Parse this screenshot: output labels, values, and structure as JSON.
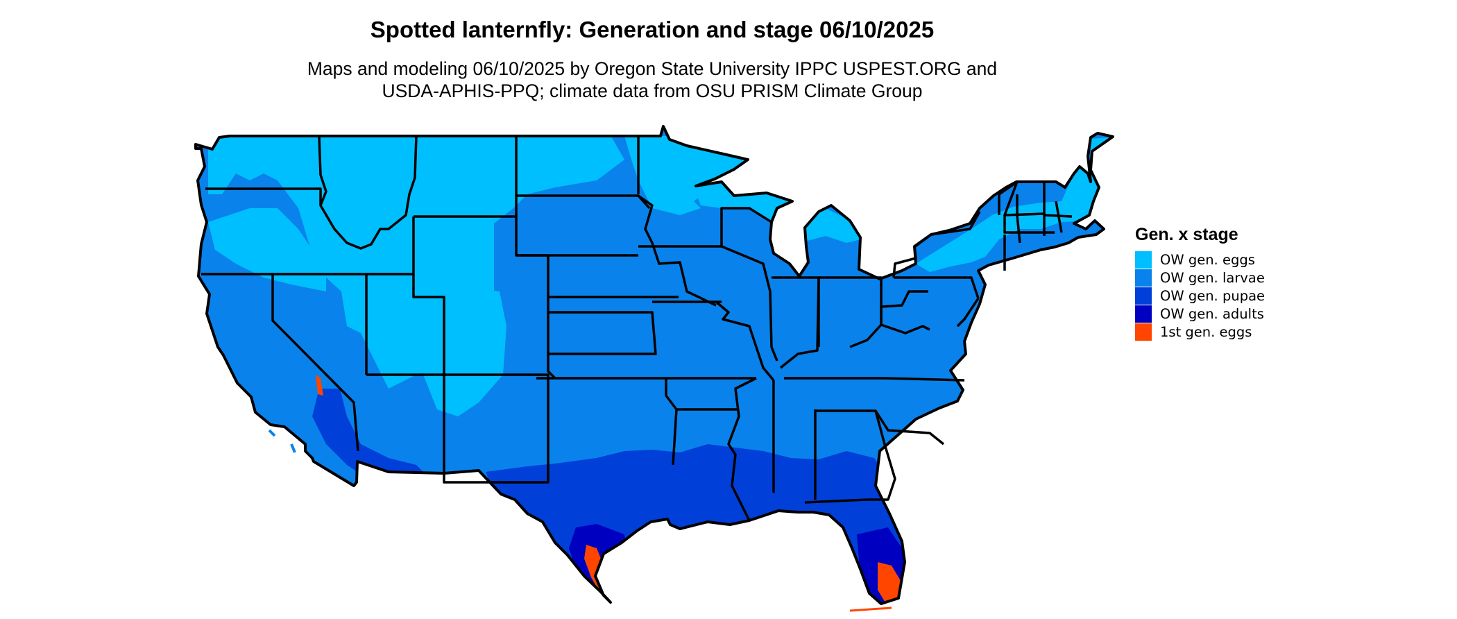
{
  "title": "Spotted lanternfly: Generation and stage 06/10/2025",
  "subtitle": {
    "line1": "Maps and modeling 06/10/2025 by Oregon State University IPPC USPEST.ORG and",
    "line2": "USDA-APHIS-PPQ; climate data from OSU PRISM Climate Group"
  },
  "legend": {
    "title": "Gen. x stage",
    "items": [
      {
        "label": "OW gen. eggs",
        "color": "#00bfff"
      },
      {
        "label": "OW gen. larvae",
        "color": "#0a82eb"
      },
      {
        "label": "OW gen. pupae",
        "color": "#0040d8"
      },
      {
        "label": "OW gen. adults",
        "color": "#0000c0"
      },
      {
        "label": "1st gen. eggs",
        "color": "#ff4500"
      }
    ]
  },
  "colors": {
    "border": "#000000",
    "background": "#ffffff"
  }
}
